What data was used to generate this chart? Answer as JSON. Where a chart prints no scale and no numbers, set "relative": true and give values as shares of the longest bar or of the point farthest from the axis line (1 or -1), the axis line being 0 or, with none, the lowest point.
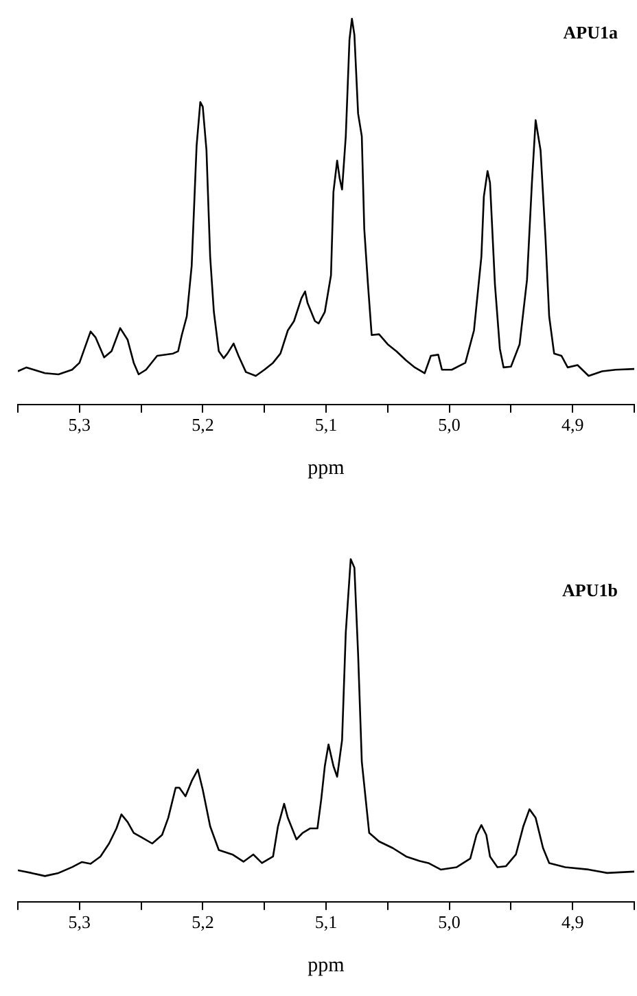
{
  "chart_data": [
    {
      "type": "line",
      "relative": true,
      "xlabel": "ppm",
      "xlim": [
        5.35,
        4.85
      ],
      "xticks": [
        {
          "value": 5.35,
          "label": null
        },
        {
          "value": 5.3,
          "label": "5,3"
        },
        {
          "value": 5.25,
          "label": null
        },
        {
          "value": 5.2,
          "label": "5,2"
        },
        {
          "value": 5.15,
          "label": null
        },
        {
          "value": 5.1,
          "label": "5,1"
        },
        {
          "value": 5.05,
          "label": null
        },
        {
          "value": 5.0,
          "label": "5,0"
        },
        {
          "value": 4.95,
          "label": null
        },
        {
          "value": 4.9,
          "label": "4,9"
        },
        {
          "value": 4.85,
          "label": null
        }
      ],
      "tick_labels": "x",
      "legend": false,
      "grid": false,
      "marker": "none",
      "line_style": "solid",
      "series": [
        {
          "name": "APU1a",
          "color": "#000000",
          "x": [
            5.35,
            5.343,
            5.328,
            5.317,
            5.306,
            5.3,
            5.296,
            5.291,
            5.287,
            5.28,
            5.274,
            5.267,
            5.261,
            5.256,
            5.252,
            5.246,
            5.237,
            5.224,
            5.22,
            5.217,
            5.213,
            5.209,
            5.205,
            5.202,
            5.2,
            5.197,
            5.194,
            5.191,
            5.187,
            5.183,
            5.18,
            5.175,
            5.171,
            5.165,
            5.157,
            5.15,
            5.143,
            5.137,
            5.131,
            5.126,
            5.12,
            5.117,
            5.115,
            5.109,
            5.106,
            5.101,
            5.096,
            5.094,
            5.091,
            5.089,
            5.087,
            5.084,
            5.081,
            5.079,
            5.077,
            5.074,
            5.071,
            5.069,
            5.066,
            5.063,
            5.057,
            5.05,
            5.043,
            5.035,
            5.028,
            5.02,
            5.015,
            5.009,
            5.006,
            4.998,
            4.987,
            4.98,
            4.974,
            4.972,
            4.969,
            4.967,
            4.963,
            4.959,
            4.956,
            4.95,
            4.943,
            4.937,
            4.933,
            4.93,
            4.926,
            4.922,
            4.919,
            4.915,
            4.909,
            4.904,
            4.896,
            4.887,
            4.876,
            4.865,
            4.85
          ],
          "values": [
            0.086,
            0.096,
            0.081,
            0.078,
            0.09,
            0.108,
            0.144,
            0.189,
            0.174,
            0.122,
            0.138,
            0.198,
            0.168,
            0.108,
            0.078,
            0.09,
            0.126,
            0.132,
            0.138,
            0.18,
            0.228,
            0.359,
            0.671,
            0.784,
            0.772,
            0.659,
            0.383,
            0.24,
            0.138,
            0.12,
            0.132,
            0.158,
            0.126,
            0.084,
            0.074,
            0.09,
            0.108,
            0.132,
            0.192,
            0.216,
            0.275,
            0.293,
            0.263,
            0.216,
            0.21,
            0.24,
            0.335,
            0.551,
            0.632,
            0.587,
            0.557,
            0.695,
            0.946,
            1.0,
            0.958,
            0.754,
            0.695,
            0.455,
            0.311,
            0.18,
            0.182,
            0.156,
            0.138,
            0.114,
            0.096,
            0.081,
            0.126,
            0.129,
            0.09,
            0.09,
            0.108,
            0.192,
            0.383,
            0.539,
            0.605,
            0.575,
            0.311,
            0.144,
            0.096,
            0.098,
            0.156,
            0.323,
            0.575,
            0.737,
            0.659,
            0.431,
            0.228,
            0.132,
            0.126,
            0.096,
            0.102,
            0.074,
            0.086,
            0.09,
            0.092
          ]
        }
      ]
    },
    {
      "type": "line",
      "relative": true,
      "xlabel": "ppm",
      "xlim": [
        5.35,
        4.85
      ],
      "xticks": [
        {
          "value": 5.35,
          "label": null
        },
        {
          "value": 5.3,
          "label": "5,3"
        },
        {
          "value": 5.25,
          "label": null
        },
        {
          "value": 5.2,
          "label": "5,2"
        },
        {
          "value": 5.15,
          "label": null
        },
        {
          "value": 5.1,
          "label": "5,1"
        },
        {
          "value": 5.05,
          "label": null
        },
        {
          "value": 5.0,
          "label": "5,0"
        },
        {
          "value": 4.95,
          "label": null
        },
        {
          "value": 4.9,
          "label": "4,9"
        },
        {
          "value": 4.85,
          "label": null
        }
      ],
      "tick_labels": "x",
      "legend": false,
      "grid": false,
      "marker": "none",
      "line_style": "solid",
      "series": [
        {
          "name": "APU1b",
          "color": "#000000",
          "x": [
            5.35,
            5.339,
            5.328,
            5.317,
            5.306,
            5.298,
            5.291,
            5.283,
            5.276,
            5.27,
            5.266,
            5.261,
            5.256,
            5.25,
            5.241,
            5.233,
            5.228,
            5.222,
            5.219,
            5.214,
            5.209,
            5.204,
            5.2,
            5.194,
            5.187,
            5.176,
            5.167,
            5.159,
            5.152,
            5.143,
            5.139,
            5.134,
            5.131,
            5.124,
            5.119,
            5.113,
            5.107,
            5.104,
            5.101,
            5.098,
            5.094,
            5.091,
            5.087,
            5.084,
            5.08,
            5.077,
            5.074,
            5.071,
            5.065,
            5.057,
            5.046,
            5.035,
            5.024,
            5.017,
            5.007,
            4.994,
            4.983,
            4.978,
            4.974,
            4.97,
            4.967,
            4.961,
            4.954,
            4.946,
            4.94,
            4.935,
            4.93,
            4.924,
            4.919,
            4.906,
            4.887,
            4.872,
            4.85
          ],
          "values": [
            0.092,
            0.084,
            0.075,
            0.084,
            0.101,
            0.116,
            0.111,
            0.132,
            0.17,
            0.214,
            0.255,
            0.233,
            0.201,
            0.189,
            0.17,
            0.195,
            0.245,
            0.333,
            0.333,
            0.308,
            0.352,
            0.386,
            0.327,
            0.22,
            0.151,
            0.138,
            0.117,
            0.138,
            0.113,
            0.132,
            0.22,
            0.286,
            0.245,
            0.182,
            0.201,
            0.214,
            0.214,
            0.296,
            0.396,
            0.459,
            0.396,
            0.365,
            0.472,
            0.786,
            1.0,
            0.975,
            0.723,
            0.409,
            0.201,
            0.176,
            0.157,
            0.132,
            0.119,
            0.113,
            0.094,
            0.101,
            0.126,
            0.195,
            0.224,
            0.195,
            0.132,
            0.101,
            0.104,
            0.138,
            0.22,
            0.27,
            0.245,
            0.157,
            0.113,
            0.101,
            0.094,
            0.084,
            0.088
          ]
        }
      ]
    }
  ]
}
